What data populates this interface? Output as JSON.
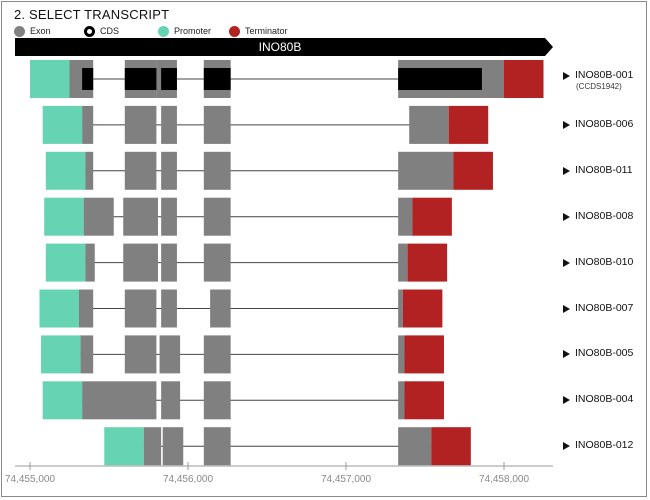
{
  "section_title": "2. SELECT TRANSCRIPT",
  "legend": [
    {
      "label": "Exon",
      "color": "#808080",
      "style": "solid"
    },
    {
      "label": "CDS",
      "color": "#000000",
      "style": "ring"
    },
    {
      "label": "Promoter",
      "color": "#66d4b2",
      "style": "solid"
    },
    {
      "label": "Terminator",
      "color": "#b22222",
      "style": "solid"
    }
  ],
  "gene": {
    "name": "INO80B"
  },
  "colors": {
    "exon": "#808080",
    "cds": "#000000",
    "promoter": "#66d4b2",
    "terminator": "#b22222",
    "intron": "#444444",
    "gene_bar": "#000000"
  },
  "axis": {
    "ticks": [
      {
        "value": 74455000,
        "label": "74,455,000"
      },
      {
        "value": 74456000,
        "label": "74,456,000"
      },
      {
        "value": 74457000,
        "label": "74,457,000"
      },
      {
        "value": 74458000,
        "label": "74,458,000"
      }
    ]
  },
  "transcripts": [
    {
      "name": "INO80B-001",
      "subtitle": "(CCDS1942)",
      "promoter": [
        74455000,
        74455250
      ],
      "exons": [
        [
          74455250,
          74455400
        ],
        [
          74455600,
          74455800
        ],
        [
          74455800,
          74455930
        ],
        [
          74456100,
          74456270
        ],
        [
          74457330,
          74458000
        ]
      ],
      "cds": [
        [
          74455330,
          74455400
        ],
        [
          74455600,
          74455800
        ],
        [
          74455830,
          74455930
        ],
        [
          74456100,
          74456270
        ],
        [
          74457330,
          74457860
        ]
      ],
      "terminator": [
        74458000,
        74458250
      ]
    },
    {
      "name": "INO80B-006",
      "subtitle": "",
      "promoter": [
        74455080,
        74455330
      ],
      "exons": [
        [
          74455330,
          74455400
        ],
        [
          74455600,
          74455800
        ],
        [
          74455830,
          74455930
        ],
        [
          74456100,
          74456270
        ],
        [
          74457400,
          74457650
        ]
      ],
      "cds": [],
      "terminator": [
        74457650,
        74457900
      ]
    },
    {
      "name": "INO80B-011",
      "subtitle": "",
      "promoter": [
        74455100,
        74455350
      ],
      "exons": [
        [
          74455350,
          74455400
        ],
        [
          74455600,
          74455800
        ],
        [
          74455830,
          74455930
        ],
        [
          74456100,
          74456270
        ],
        [
          74457330,
          74457680
        ]
      ],
      "cds": [],
      "terminator": [
        74457680,
        74457930
      ]
    },
    {
      "name": "INO80B-008",
      "subtitle": "",
      "promoter": [
        74455090,
        74455340
      ],
      "exons": [
        [
          74455340,
          74455530
        ],
        [
          74455590,
          74455810
        ],
        [
          74455830,
          74455930
        ],
        [
          74456100,
          74456270
        ],
        [
          74457330,
          74457420
        ]
      ],
      "cds": [],
      "terminator": [
        74457420,
        74457670
      ]
    },
    {
      "name": "INO80B-010",
      "subtitle": "",
      "promoter": [
        74455100,
        74455350
      ],
      "exons": [
        [
          74455350,
          74455410
        ],
        [
          74455590,
          74455810
        ],
        [
          74455830,
          74455930
        ],
        [
          74456100,
          74456270
        ],
        [
          74457330,
          74457390
        ]
      ],
      "cds": [],
      "terminator": [
        74457390,
        74457640
      ]
    },
    {
      "name": "INO80B-007",
      "subtitle": "",
      "promoter": [
        74455060,
        74455310
      ],
      "exons": [
        [
          74455310,
          74455400
        ],
        [
          74455600,
          74455800
        ],
        [
          74455830,
          74455930
        ],
        [
          74456140,
          74456270
        ],
        [
          74457330,
          74457360
        ]
      ],
      "cds": [],
      "terminator": [
        74457360,
        74457610
      ]
    },
    {
      "name": "INO80B-005",
      "subtitle": "",
      "promoter": [
        74455070,
        74455320
      ],
      "exons": [
        [
          74455320,
          74455400
        ],
        [
          74455600,
          74455800
        ],
        [
          74455820,
          74455950
        ],
        [
          74456100,
          74456270
        ],
        [
          74457330,
          74457370
        ]
      ],
      "cds": [],
      "terminator": [
        74457370,
        74457620
      ]
    },
    {
      "name": "INO80B-004",
      "subtitle": "",
      "promoter": [
        74455080,
        74455330
      ],
      "exons": [
        [
          74455330,
          74455800
        ],
        [
          74455830,
          74455950
        ],
        [
          74456100,
          74456270
        ],
        [
          74457330,
          74457370
        ]
      ],
      "cds": [],
      "terminator": [
        74457370,
        74457620
      ]
    },
    {
      "name": "INO80B-012",
      "subtitle": "",
      "promoter": [
        74455470,
        74455720
      ],
      "exons": [
        [
          74455720,
          74455830
        ],
        [
          74455840,
          74455970
        ],
        [
          74456100,
          74456270
        ],
        [
          74457330,
          74457540
        ]
      ],
      "cds": [],
      "terminator": [
        74457540,
        74457790
      ]
    }
  ]
}
